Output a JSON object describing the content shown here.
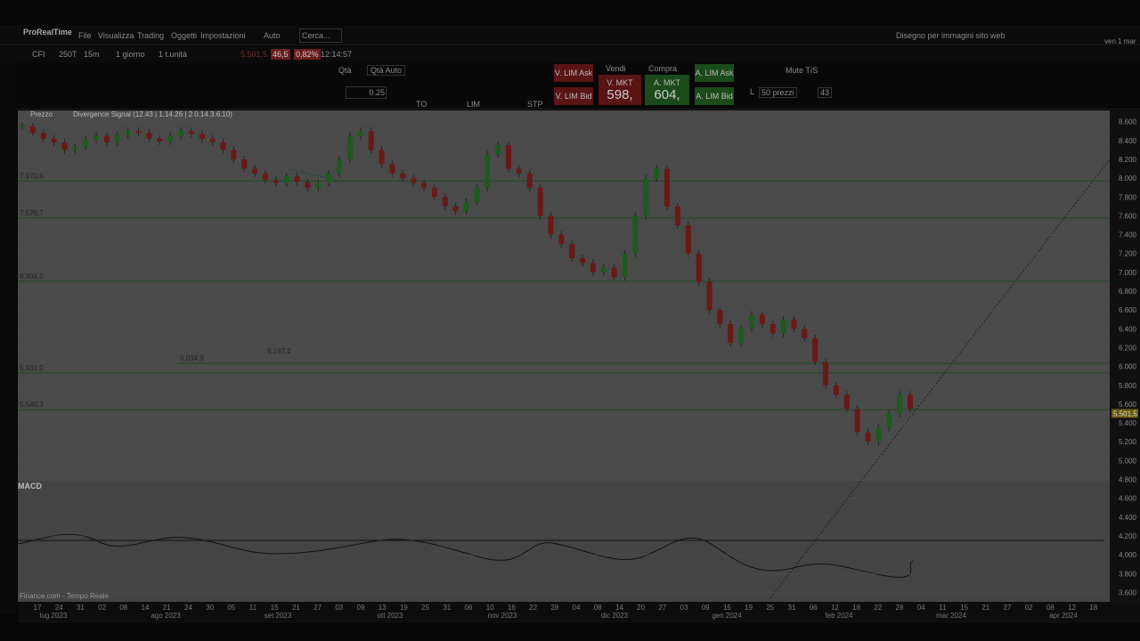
{
  "toolbar": {
    "brand": "ProRealTime",
    "menu": [
      "File",
      "Visualizza",
      "Trading",
      "Oggetti",
      "Impostazioni"
    ],
    "auto": "Auto",
    "search": "Cerca...",
    "right_label": "Disegno per immagini sito web",
    "date": "ven 1 mar"
  },
  "instrument_bar": {
    "fields": [
      "CFI",
      "250T",
      "15m",
      "1 giorno",
      "1 t.unità"
    ],
    "last": "5.501,5",
    "change": "46,5",
    "change_pct": "0,82%",
    "time": "12:14:57"
  },
  "order_panel": {
    "qty": "Qtà",
    "qty_auto": "Qtà Auto",
    "qty_value": "0.25",
    "types": [
      "TO",
      "LIM",
      "STP"
    ],
    "sell_lim_ask": "V. LIM Ask",
    "sell_lim_bid": "V. LIM Bid",
    "sell": "Vendi",
    "buy": "Compra",
    "sell_mkt": "V. MKT",
    "buy_mkt": "A. MKT",
    "sell_price": "598,",
    "buy_price": "604,",
    "buy_lim_ask": "A. LIM Ask",
    "buy_lim_bid": "A. LIM Bid",
    "mute": "Mute T/S",
    "l": "L",
    "prices": "50 prezzi",
    "depth": "43"
  },
  "chart_data": {
    "type": "candlestick",
    "title": "Prezzo",
    "indicator": "Divergence Signal (12.43 | 1.14.26 | 2.0.14.3.6.10)",
    "lower_panel": "MACD",
    "source": "Finance.com - Tempo Reale",
    "closes": [
      8550,
      8480,
      8420,
      8380,
      8300,
      8330,
      8410,
      8450,
      8380,
      8460,
      8500,
      8480,
      8420,
      8390,
      8450,
      8500,
      8470,
      8420,
      8380,
      8300,
      8200,
      8100,
      8050,
      7980,
      7950,
      8020,
      7960,
      7900,
      7950,
      8050,
      8200,
      8450,
      8500,
      8300,
      8150,
      8050,
      8000,
      7950,
      7900,
      7800,
      7700,
      7650,
      7750,
      7900,
      8250,
      8350,
      8100,
      8050,
      7900,
      7600,
      7400,
      7300,
      7150,
      7100,
      7000,
      7050,
      6950,
      7200,
      7600,
      8000,
      8100,
      7700,
      7500,
      7200,
      6900,
      6600,
      6450,
      6250,
      6400,
      6550,
      6450,
      6350,
      6500,
      6400,
      6300,
      6050,
      5800,
      5700,
      5550,
      5300,
      5200,
      5350,
      5500,
      5700,
      5550
    ],
    "up_color": "#1e5a1e",
    "down_color": "#6a1818",
    "ylim": [
      3500,
      8720
    ],
    "yticks": [
      {
        "value": 8600,
        "label": "8.600"
      },
      {
        "value": 8400,
        "label": "8.400"
      },
      {
        "value": 8200,
        "label": "8.200"
      },
      {
        "value": 8000,
        "label": "8.000"
      },
      {
        "value": 7800,
        "label": "7.800"
      },
      {
        "value": 7600,
        "label": "7.600"
      },
      {
        "value": 7400,
        "label": "7.400"
      },
      {
        "value": 7200,
        "label": "7.200"
      },
      {
        "value": 7000,
        "label": "7.000"
      },
      {
        "value": 6800,
        "label": "6.800"
      },
      {
        "value": 6600,
        "label": "6.600"
      },
      {
        "value": 6400,
        "label": "6.400"
      },
      {
        "value": 6200,
        "label": "6.200"
      },
      {
        "value": 6000,
        "label": "6.000"
      },
      {
        "value": 5800,
        "label": "5.800"
      },
      {
        "value": 5600,
        "label": "5.600"
      },
      {
        "value": 5400,
        "label": "5.400"
      },
      {
        "value": 5200,
        "label": "5.200"
      },
      {
        "value": 5000,
        "label": "5.000"
      },
      {
        "value": 4800,
        "label": "4.800"
      },
      {
        "value": 4600,
        "label": "4.600"
      },
      {
        "value": 4400,
        "label": "4.400"
      },
      {
        "value": 4200,
        "label": "4.200"
      },
      {
        "value": 4000,
        "label": "4.000"
      },
      {
        "value": 3800,
        "label": "3.800"
      },
      {
        "value": 3600,
        "label": "3.600"
      }
    ],
    "levels": [
      {
        "value": 7970.5,
        "label": "7.970,5"
      },
      {
        "value": 7576.7,
        "label": "7.576,7"
      },
      {
        "value": 6904,
        "label": "6.904,0"
      },
      {
        "value": 6034.9,
        "label": "6.034,9"
      },
      {
        "value": 5931,
        "label": "5.931,0"
      },
      {
        "value": 5540.3,
        "label": "5.540,3"
      }
    ],
    "annotation": {
      "value": 6167.2,
      "label": "6.167,2"
    },
    "last_price": {
      "value": 5501.5,
      "label": "5.501,5"
    },
    "x_labels": [
      "17",
      "24",
      "31",
      "02",
      "08",
      "14",
      "21",
      "24",
      "30",
      "05",
      "11",
      "15",
      "21",
      "27",
      "03",
      "09",
      "13",
      "19",
      "25",
      "31",
      "06",
      "10",
      "16",
      "22",
      "28",
      "04",
      "08",
      "14",
      "20",
      "27",
      "03",
      "09",
      "15",
      "19",
      "25",
      "31",
      "06",
      "12",
      "18",
      "22",
      "28",
      "04",
      "11",
      "15",
      "21",
      "27",
      "02",
      "08",
      "12",
      "18"
    ],
    "months": [
      "lug 2023",
      "ago 2023",
      "set 2023",
      "ott 2023",
      "nov 2023",
      "dic 2023",
      "gen 2024",
      "feb 2024",
      "mar 2024",
      "apr 2024"
    ]
  }
}
